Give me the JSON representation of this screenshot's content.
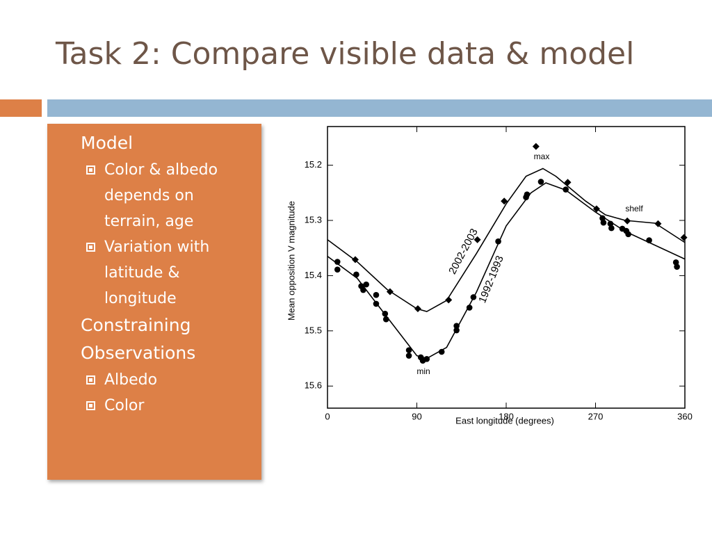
{
  "slide": {
    "title": "Task 2: Compare visible data & model",
    "items": [
      {
        "level": 1,
        "text": "Model"
      },
      {
        "level": 2,
        "text": "Color & albedo depends on terrain, age"
      },
      {
        "level": 2,
        "text": "Variation with latitude & longitude"
      },
      {
        "level": 1,
        "text": "Constraining Observations"
      },
      {
        "level": 2,
        "text": "Albedo"
      },
      {
        "level": 2,
        "text": "Color"
      }
    ]
  },
  "chart_data": {
    "type": "scatter",
    "x_label": "East longitude (degrees)",
    "y_label": "Mean opposition V magnitude",
    "xlim": [
      0,
      360
    ],
    "xticks": [
      0,
      90,
      180,
      270,
      360
    ],
    "ylim": [
      15.13,
      15.64
    ],
    "yticks": [
      15.2,
      15.3,
      15.4,
      15.5,
      15.6
    ],
    "y_inverted": true,
    "color": "#000000",
    "annotations": [
      "max",
      "min",
      "shelf"
    ],
    "series": [
      {
        "name": "2002-2003",
        "marker": "diamond",
        "x": [
          28,
          63,
          91,
          122,
          151,
          178,
          210,
          242,
          271,
          302,
          333,
          359
        ],
        "values": [
          15.371,
          15.429,
          15.46,
          15.444,
          15.335,
          15.265,
          15.166,
          15.231,
          15.279,
          15.301,
          15.306,
          15.331
        ],
        "fit": {
          "x": [
            0,
            30,
            60,
            90,
            100,
            120,
            150,
            180,
            200,
            217,
            230,
            260,
            280,
            300,
            330,
            360
          ],
          "values": [
            15.335,
            15.375,
            15.425,
            15.46,
            15.465,
            15.445,
            15.36,
            15.27,
            15.22,
            15.206,
            15.22,
            15.265,
            15.29,
            15.3,
            15.305,
            15.34
          ]
        }
      },
      {
        "name": "1992-1993",
        "marker": "circle",
        "x": [
          10,
          10,
          29,
          34,
          36,
          39,
          49,
          49,
          58,
          59,
          82,
          82,
          94,
          96,
          100,
          115,
          130,
          130,
          143,
          147,
          172,
          200,
          201,
          215,
          240,
          277,
          278,
          285,
          286,
          297,
          301,
          303,
          324,
          351,
          352
        ],
        "values": [
          15.375,
          15.389,
          15.398,
          15.419,
          15.426,
          15.416,
          15.435,
          15.451,
          15.469,
          15.479,
          15.535,
          15.545,
          15.548,
          15.554,
          15.551,
          15.538,
          15.491,
          15.499,
          15.458,
          15.439,
          15.338,
          15.258,
          15.253,
          15.23,
          15.244,
          15.296,
          15.304,
          15.306,
          15.314,
          15.315,
          15.319,
          15.325,
          15.336,
          15.376,
          15.384
        ],
        "fit": {
          "x": [
            0,
            30,
            60,
            90,
            100,
            120,
            150,
            180,
            205,
            220,
            240,
            270,
            300,
            330,
            360
          ],
          "values": [
            15.365,
            15.405,
            15.475,
            15.545,
            15.55,
            15.53,
            15.43,
            15.31,
            15.25,
            15.232,
            15.245,
            15.285,
            15.32,
            15.345,
            15.37
          ]
        }
      }
    ]
  }
}
